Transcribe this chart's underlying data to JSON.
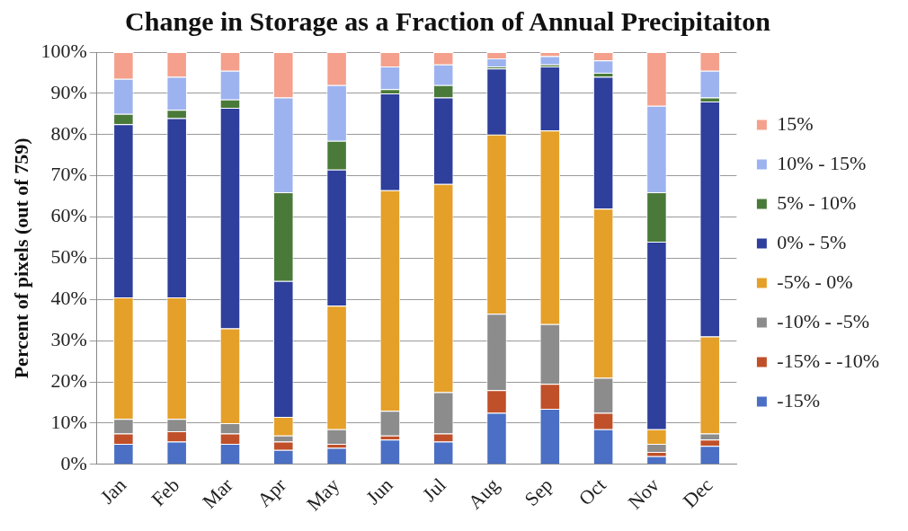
{
  "chart_data": {
    "type": "bar",
    "title": "Change in Storage as a Fraction of Annual Precipitaiton",
    "ylabel": "Percent of pixels (out of 759)",
    "stacked": true,
    "legend": "right",
    "grid": "y",
    "categories": [
      "Jan",
      "Feb",
      "Mar",
      "Apr",
      "May",
      "Jun",
      "Jul",
      "Aug",
      "Sep",
      "Oct",
      "Nov",
      "Dec"
    ],
    "ylim": [
      0,
      100
    ],
    "yticks": [
      {
        "value": 0,
        "label": "0%"
      },
      {
        "value": 10,
        "label": "10%"
      },
      {
        "value": 20,
        "label": "20%"
      },
      {
        "value": 30,
        "label": "30%"
      },
      {
        "value": 40,
        "label": "40%"
      },
      {
        "value": 50,
        "label": "50%"
      },
      {
        "value": 60,
        "label": "60%"
      },
      {
        "value": 70,
        "label": "70%"
      },
      {
        "value": 80,
        "label": "80%"
      },
      {
        "value": 90,
        "label": "90%"
      },
      {
        "value": 100,
        "label": "100%"
      }
    ],
    "series": [
      {
        "name": "-15%",
        "color": "#4a6fc4",
        "values": [
          5,
          5.5,
          5,
          3.5,
          4,
          6,
          5.5,
          12.5,
          13.5,
          8.5,
          2,
          4.5
        ]
      },
      {
        "name": "-15% - -10%",
        "color": "#c0502a",
        "values": [
          2.5,
          2.5,
          2.5,
          2,
          1,
          1,
          2,
          5.5,
          6,
          4,
          1,
          1.5
        ]
      },
      {
        "name": "-10% - -5%",
        "color": "#8c8c8c",
        "values": [
          3.5,
          3,
          2.5,
          1.5,
          3.5,
          6,
          10,
          18.5,
          14.5,
          8.5,
          2,
          1.5
        ]
      },
      {
        "name": "-5% - 0%",
        "color": "#e5a02a",
        "values": [
          29.5,
          29.5,
          23,
          4.5,
          30,
          53.5,
          50.5,
          43.5,
          47,
          41,
          3.5,
          23.5
        ]
      },
      {
        "name": "0% - 5%",
        "color": "#2e3f9c",
        "values": [
          42,
          43.5,
          53.5,
          33,
          33,
          23.5,
          21,
          16,
          15.5,
          32,
          45.5,
          57
        ]
      },
      {
        "name": "5% - 10%",
        "color": "#4a7a3a",
        "values": [
          2.5,
          2,
          2,
          21.5,
          7,
          1,
          3,
          0.5,
          0.5,
          1,
          12,
          1
        ]
      },
      {
        "name": "10% - 15%",
        "color": "#9db3f0",
        "values": [
          8.5,
          8,
          7,
          23,
          13.5,
          5.5,
          5,
          2,
          2,
          3,
          21,
          6.5
        ]
      },
      {
        "name": "15%",
        "color": "#f4a08c",
        "values": [
          6.5,
          6,
          4.5,
          11,
          8,
          3.5,
          3,
          1.5,
          1,
          2,
          13,
          4.5
        ]
      }
    ]
  }
}
